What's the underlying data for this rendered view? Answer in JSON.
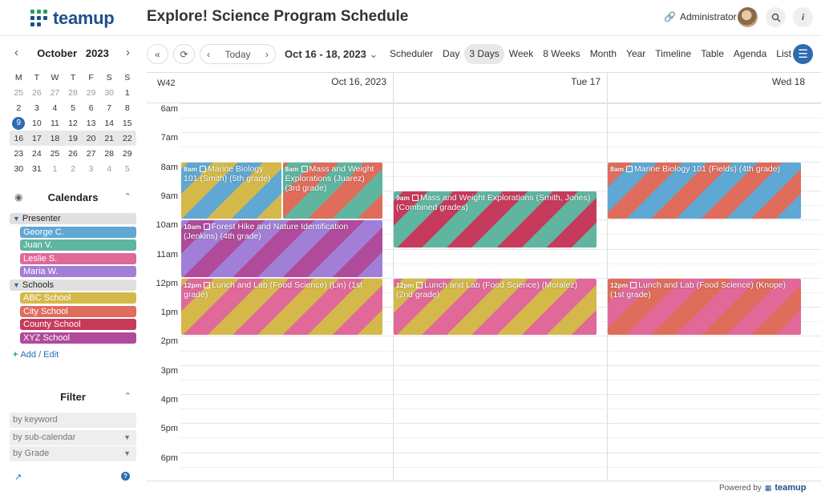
{
  "app": {
    "logo_text": "teamup",
    "title": "Explore! Science Program Schedule",
    "user_label": "Administrator"
  },
  "icons": {
    "link": "link-icon",
    "search": "search-icon",
    "info": "info-icon",
    "menu": "menu-icon"
  },
  "mini_calendar": {
    "month": "October",
    "year": "2023",
    "dow": [
      "M",
      "T",
      "W",
      "T",
      "F",
      "S",
      "S"
    ],
    "weeks": [
      [
        "25",
        "26",
        "27",
        "28",
        "29",
        "30",
        "1"
      ],
      [
        "2",
        "3",
        "4",
        "5",
        "6",
        "7",
        "8"
      ],
      [
        "9",
        "10",
        "11",
        "12",
        "13",
        "14",
        "15"
      ],
      [
        "16",
        "17",
        "18",
        "19",
        "20",
        "21",
        "22"
      ],
      [
        "23",
        "24",
        "25",
        "26",
        "27",
        "28",
        "29"
      ],
      [
        "30",
        "31",
        "1",
        "2",
        "3",
        "4",
        "5"
      ]
    ]
  },
  "calendars": {
    "heading": "Calendars",
    "groups": [
      {
        "name": "Presenter",
        "items": [
          {
            "name": "George C.",
            "color": "#5fa8d3"
          },
          {
            "name": "Juan V.",
            "color": "#5fb5a0"
          },
          {
            "name": "Leslie S.",
            "color": "#e0699a"
          },
          {
            "name": "Maria W.",
            "color": "#a27fd6"
          }
        ]
      },
      {
        "name": "Schools",
        "items": [
          {
            "name": "ABC School",
            "color": "#d4b94a"
          },
          {
            "name": "City School",
            "color": "#e06c5c"
          },
          {
            "name": "County School",
            "color": "#c63a5c"
          },
          {
            "name": "XYZ School",
            "color": "#b04a9a"
          }
        ]
      }
    ],
    "add_edit": "Add / Edit"
  },
  "filter": {
    "heading": "Filter",
    "keyword_placeholder": "by keyword",
    "subcal_placeholder": "by sub-calendar",
    "grade_placeholder": "by Grade"
  },
  "toolbar": {
    "today": "Today",
    "range": "Oct 16 - 18, 2023",
    "views": [
      "Scheduler",
      "Day",
      "3 Days",
      "Week",
      "8 Weeks",
      "Month",
      "Year",
      "Timeline",
      "Table",
      "Agenda",
      "List"
    ],
    "active_view": "3 Days"
  },
  "grid": {
    "week_label": "W42",
    "days": [
      "Oct 16, 2023",
      "Tue 17",
      "Wed 18"
    ],
    "hours": [
      "6am",
      "7am",
      "8am",
      "9am",
      "10am",
      "11am",
      "12pm",
      "1pm",
      "2pm",
      "3pm",
      "4pm",
      "5pm",
      "6pm"
    ]
  },
  "events": [
    {
      "day": 0,
      "col": 0,
      "cols": 2,
      "start": 8,
      "end": 10,
      "time": "8am",
      "title": "Marine Biology 101 (Smith) (5th grade)",
      "colors": [
        "#d4b94a",
        "#5fa8d3"
      ]
    },
    {
      "day": 0,
      "col": 1,
      "cols": 2,
      "start": 8,
      "end": 10,
      "time": "8am",
      "title": "Mass and Weight Explorations (Juarez) (3rd grade)",
      "colors": [
        "#e06c5c",
        "#5fb5a0"
      ]
    },
    {
      "day": 0,
      "col": 0,
      "cols": 1,
      "start": 10,
      "end": 12,
      "time": "10am",
      "title": "Forest Hike and Nature Identification (Jenkins) (4th grade)",
      "colors": [
        "#a27fd6",
        "#b04a9a"
      ]
    },
    {
      "day": 0,
      "col": 0,
      "cols": 1,
      "start": 12,
      "end": 14,
      "time": "12pm",
      "title": "Lunch and Lab (Food Science) (Lin) (1st grade)",
      "colors": [
        "#d4b94a",
        "#e0699a"
      ]
    },
    {
      "day": 1,
      "col": 0,
      "cols": 1,
      "start": 9,
      "end": 11,
      "time": "9am",
      "title": "Mass and Weight Explorations (Smith, Jones) (Combined grades)",
      "colors": [
        "#5fb5a0",
        "#c63a5c"
      ]
    },
    {
      "day": 1,
      "col": 0,
      "cols": 1,
      "start": 12,
      "end": 14,
      "time": "12pm",
      "title": "Lunch and Lab (Food Science) (Moralez) (2nd grade)",
      "colors": [
        "#e0699a",
        "#d4b94a"
      ]
    },
    {
      "day": 2,
      "col": 0,
      "cols": 1,
      "start": 8,
      "end": 10,
      "time": "8am",
      "title": "Marine Biology 101 (Fields) (4th grade)",
      "colors": [
        "#5fa8d3",
        "#e06c5c"
      ]
    },
    {
      "day": 2,
      "col": 0,
      "cols": 1,
      "start": 12,
      "end": 14,
      "time": "12pm",
      "title": "Lunch and Lab (Food Science) (Knope) (1st grade)",
      "colors": [
        "#e0699a",
        "#e06c5c"
      ]
    }
  ],
  "footer": {
    "powered_by": "Powered by",
    "brand": "teamup"
  }
}
